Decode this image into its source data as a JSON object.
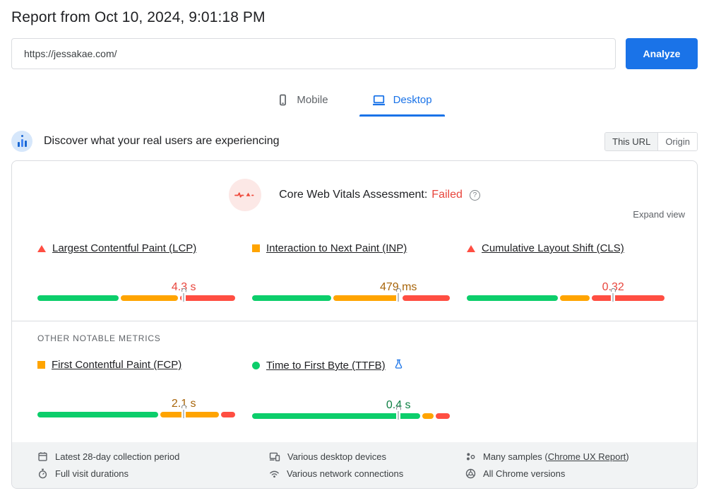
{
  "report": {
    "title": "Report from Oct 10, 2024, 9:01:18 PM"
  },
  "url_bar": {
    "value": "https://jessakae.com/",
    "analyze_label": "Analyze"
  },
  "tabs": {
    "mobile": "Mobile",
    "desktop": "Desktop"
  },
  "field_section": {
    "heading": "Discover what your real users are experiencing",
    "scope_toggle": {
      "this_url": "This URL",
      "origin": "Origin"
    },
    "assessment": {
      "label": "Core Web Vitals Assessment:",
      "result": "Failed"
    },
    "expand_label": "Expand view",
    "other_metrics_heading": "OTHER NOTABLE METRICS"
  },
  "core_metrics": [
    {
      "id": "lcp",
      "name": "Largest Contentful Paint (LCP)",
      "status": "poor",
      "value": "4.3 s",
      "distribution": {
        "good": 41,
        "needs_improvement": 29,
        "poor": 28
      },
      "p75_marker_pct": 74
    },
    {
      "id": "inp",
      "name": "Interaction to Next Paint (INP)",
      "status": "average",
      "value": "479 ms",
      "distribution": {
        "good": 40,
        "needs_improvement": 34,
        "poor": 24
      },
      "p75_marker_pct": 74
    },
    {
      "id": "cls",
      "name": "Cumulative Layout Shift (CLS)",
      "status": "poor",
      "value": "0.32",
      "distribution": {
        "good": 46,
        "needs_improvement": 15,
        "poor": 37
      },
      "p75_marker_pct": 74
    }
  ],
  "other_metrics": [
    {
      "id": "fcp",
      "name": "First Contentful Paint (FCP)",
      "status": "average",
      "value": "2.1 s",
      "distribution": {
        "good": 61,
        "needs_improvement": 30,
        "poor": 7
      },
      "p75_marker_pct": 74
    },
    {
      "id": "ttfb",
      "name": "Time to First Byte (TTFB)",
      "status": "good",
      "value": "0.4 s",
      "experimental": true,
      "distribution": {
        "good": 85,
        "needs_improvement": 6,
        "poor": 7
      },
      "p75_marker_pct": 74
    }
  ],
  "footnotes": {
    "collection_period": "Latest 28-day collection period",
    "visit_durations": "Full visit durations",
    "devices": "Various desktop devices",
    "connections": "Various network connections",
    "samples_prefix": "Many samples (",
    "samples_link": "Chrome UX Report",
    "samples_suffix": ")",
    "versions": "All Chrome versions"
  },
  "colors": {
    "accent_blue": "#1a73e8",
    "good_green": "#0cce6b",
    "average_orange": "#ffa400",
    "poor_red": "#ff4e42",
    "failed_red": "#e8453c"
  }
}
